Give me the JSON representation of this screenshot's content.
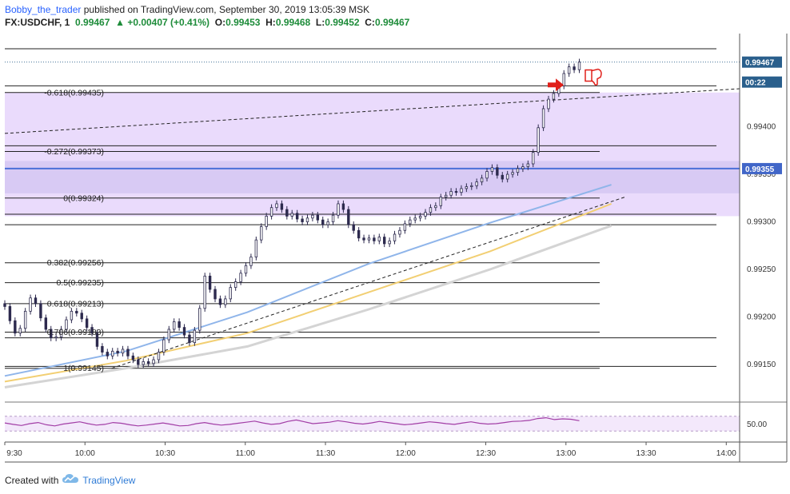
{
  "header": {
    "author": "Bobby_the_trader",
    "published": "published on TradingView.com, September 30, 2019 13:05:39 MSK",
    "symbol": "FX:USDCHF, 1",
    "last": "0.99467",
    "change": "+0.00407 (+0.41%)",
    "open_label": "O:",
    "open": "0.99453",
    "high_label": "H:",
    "high": "0.99468",
    "low_label": "L:",
    "low": "0.99452",
    "close_label": "C:",
    "close": "0.99467",
    "arrow_icon": "up-triangle-icon"
  },
  "footer": {
    "created_with": "Created with",
    "brand": "TradingView",
    "logo_icon": "tradingview-cloud-icon"
  },
  "colors": {
    "up_value": "#1e8c3a",
    "author": "#2962ff",
    "zone": "#e6d5fb",
    "zone_overlap": "#d2c4f2",
    "support_line": "#4a6fd8",
    "ma_fast": "#8fb5ea",
    "ma_mid": "#f2cf73",
    "ma_slow": "#d4d4d4",
    "rsi": "#a23ea6",
    "arrow": "#e0201a",
    "candle_body": "#2d2a4e",
    "current_price_tag": "#2a5f8c",
    "support_tag": "#4166c8"
  },
  "badges": {
    "current_price": "0.99467",
    "countdown": "00:22",
    "support_level": "0.99355"
  },
  "annotations": {
    "arrow_icon": "red-right-arrow-icon",
    "thumb_icon": "thumbs-down-icon"
  },
  "chart_data": {
    "type": "candlestick",
    "symbol": "USDCHF",
    "timeframe": "1",
    "x_ticks": [
      "9:30",
      "10:00",
      "10:30",
      "11:00",
      "11:30",
      "12:00",
      "12:30",
      "13:00",
      "13:30",
      "14:00"
    ],
    "y_ticks": [
      "0.99400",
      "0.99350",
      "0.99300",
      "0.99250",
      "0.99200",
      "0.99150"
    ],
    "y_ticks_values": [
      0.994,
      0.9935,
      0.993,
      0.9925,
      0.992,
      0.9915
    ],
    "ylim": [
      0.99112,
      0.99497
    ],
    "xlim": [
      "09:30",
      "14:05"
    ],
    "fib_levels": [
      {
        "label": "-0.618(0.99435)",
        "value": 0.99435
      },
      {
        "label": "-0.272(0.99373)",
        "value": 0.99373
      },
      {
        "label": "0(0.99324)",
        "value": 0.99324
      },
      {
        "label": "0.382(0.99256)",
        "value": 0.99256
      },
      {
        "label": "0.5(0.99235)",
        "value": 0.99235
      },
      {
        "label": "0.618(0.99213)",
        "value": 0.99213
      },
      {
        "label": "0.786(0.99183)",
        "value": 0.99183
      },
      {
        "label": "1(0.99145)",
        "value": 0.99145
      }
    ],
    "horizontal_levels": [
      0.99481,
      0.99442,
      0.99379,
      0.99307,
      0.99296,
      0.99177,
      0.99147
    ],
    "support_level": 0.99355,
    "zones": [
      {
        "from": 0.99435,
        "to": 0.99305
      },
      {
        "from": 0.99363,
        "to": 0.99329
      }
    ],
    "trendlines": [
      {
        "t1": "09:30",
        "p1": 0.99392,
        "t2": "14:05",
        "p2": 0.99439
      },
      {
        "t1": "10:10",
        "p1": 0.99145,
        "t2": "13:22",
        "p2": 0.99325
      }
    ],
    "closes": [
      0.9921,
      0.99195,
      0.99182,
      0.99187,
      0.99205,
      0.99219,
      0.99213,
      0.99198,
      0.99186,
      0.99177,
      0.99178,
      0.99186,
      0.99196,
      0.99205,
      0.99203,
      0.99197,
      0.99188,
      0.99182,
      0.99168,
      0.99162,
      0.99158,
      0.99163,
      0.99161,
      0.99165,
      0.99158,
      0.99154,
      0.99149,
      0.99152,
      0.9915,
      0.99154,
      0.99162,
      0.99175,
      0.99186,
      0.99194,
      0.99188,
      0.9918,
      0.99172,
      0.99185,
      0.99208,
      0.99242,
      0.99228,
      0.99218,
      0.99212,
      0.99218,
      0.9923,
      0.99236,
      0.99245,
      0.99253,
      0.99262,
      0.9928,
      0.99294,
      0.99305,
      0.99314,
      0.99318,
      0.99312,
      0.99305,
      0.99308,
      0.99302,
      0.99299,
      0.99303,
      0.99306,
      0.99301,
      0.99296,
      0.99299,
      0.99306,
      0.99318,
      0.99312,
      0.99296,
      0.9929,
      0.99282,
      0.9928,
      0.99282,
      0.99279,
      0.99283,
      0.99276,
      0.99279,
      0.99286,
      0.9929,
      0.99297,
      0.99301,
      0.99303,
      0.99305,
      0.99309,
      0.99314,
      0.99316,
      0.99325,
      0.99327,
      0.99331,
      0.9933,
      0.99334,
      0.99336,
      0.99337,
      0.99341,
      0.99345,
      0.99352,
      0.99356,
      0.99348,
      0.99344,
      0.99349,
      0.99351,
      0.99355,
      0.99357,
      0.9936,
      0.99372,
      0.99398,
      0.99418,
      0.99428,
      0.99434,
      0.99442,
      0.99455,
      0.99462,
      0.99459,
      0.99467
    ],
    "ma_fast": {
      "from_t": "09:30",
      "to_t": "13:17",
      "values": [
        0.99137,
        0.99163,
        0.99204,
        0.99255,
        0.99298,
        0.99338
      ]
    },
    "ma_mid": {
      "from_t": "09:30",
      "to_t": "13:17",
      "values": [
        0.99131,
        0.99153,
        0.99182,
        0.99225,
        0.99268,
        0.99318
      ]
    },
    "ma_slow": {
      "from_t": "09:30",
      "to_t": "13:17",
      "values": [
        0.99125,
        0.99145,
        0.99168,
        0.99207,
        0.99249,
        0.99295
      ]
    },
    "rsi": {
      "level_label": "50.00",
      "level": 50,
      "values": [
        52,
        48,
        45,
        50,
        53,
        47,
        44,
        49,
        52,
        55,
        50,
        46,
        48,
        53,
        51,
        47,
        44,
        46,
        49,
        52,
        48,
        44,
        45,
        50,
        53,
        49,
        46,
        48,
        51,
        54,
        57,
        52,
        48,
        50,
        56,
        60,
        55,
        50,
        52,
        54,
        58,
        55,
        51,
        49,
        52,
        56,
        53,
        50,
        47,
        49,
        52,
        55,
        53,
        50,
        48,
        52,
        55,
        51,
        49,
        50,
        53,
        56,
        57,
        59,
        64,
        66,
        61,
        63,
        62,
        58
      ]
    }
  }
}
